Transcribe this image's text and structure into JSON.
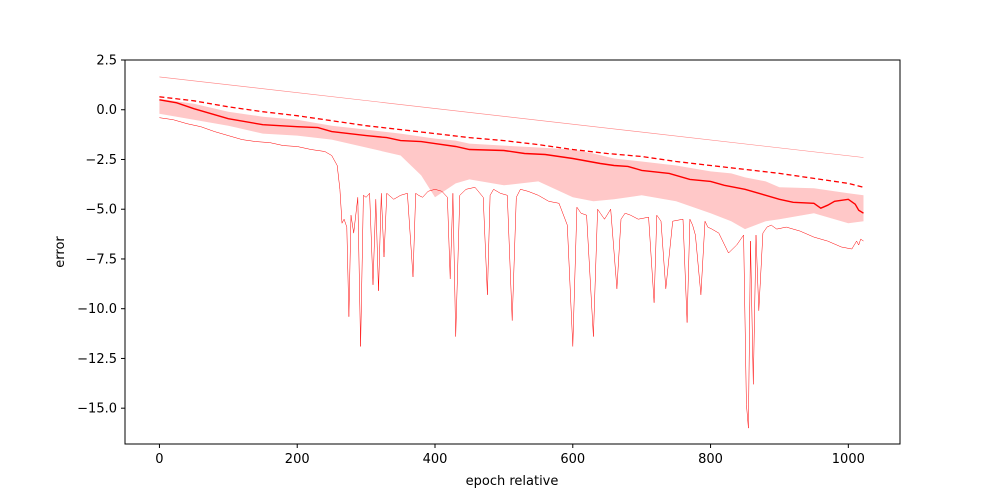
{
  "chart_data": {
    "type": "line",
    "title": "",
    "xlabel": "epoch relative",
    "ylabel": "error",
    "xlim": [
      -50,
      1075
    ],
    "ylim": [
      -16.8,
      2.5
    ],
    "xticks": [
      0,
      200,
      400,
      600,
      800,
      1000
    ],
    "xtick_labels": [
      "0",
      "200",
      "400",
      "600",
      "800",
      "1000"
    ],
    "yticks": [
      2.5,
      0.0,
      -2.5,
      -5.0,
      -7.5,
      -10.0,
      -12.5,
      -15.0
    ],
    "ytick_labels": [
      "2.5",
      "0.0",
      "−2.5",
      "−5.0",
      "−7.5",
      "−10.0",
      "−12.5",
      "−15.0"
    ],
    "grid": false,
    "legend": "none",
    "colors": {
      "line": "#ff0000",
      "band": "#ffc8c8",
      "thin": "#ff8080"
    },
    "series": [
      {
        "role": "upper-thin",
        "style": "thin-solid",
        "x": [
          0,
          1022
        ],
        "y": [
          1.65,
          -2.4
        ]
      },
      {
        "role": "upper-dashed",
        "style": "dashed",
        "x": [
          0,
          50,
          100,
          150,
          200,
          250,
          300,
          350,
          400,
          450,
          500,
          550,
          600,
          650,
          700,
          750,
          800,
          850,
          900,
          950,
          1000,
          1022
        ],
        "y": [
          0.65,
          0.45,
          0.15,
          -0.1,
          -0.3,
          -0.55,
          -0.8,
          -1.0,
          -1.2,
          -1.4,
          -1.55,
          -1.75,
          -2.0,
          -2.2,
          -2.35,
          -2.6,
          -2.8,
          -3.0,
          -3.2,
          -3.45,
          -3.7,
          -3.9
        ]
      },
      {
        "role": "mean",
        "style": "solid",
        "x": [
          0,
          25,
          50,
          75,
          100,
          150,
          200,
          230,
          250,
          300,
          330,
          350,
          380,
          400,
          430,
          450,
          500,
          530,
          560,
          600,
          640,
          660,
          680,
          700,
          740,
          770,
          800,
          820,
          850,
          880,
          900,
          920,
          950,
          960,
          970,
          980,
          1000,
          1010,
          1015,
          1022
        ],
        "y": [
          0.5,
          0.35,
          0.05,
          -0.2,
          -0.45,
          -0.75,
          -0.85,
          -0.9,
          -1.1,
          -1.3,
          -1.4,
          -1.55,
          -1.6,
          -1.7,
          -1.85,
          -2.0,
          -2.05,
          -2.2,
          -2.25,
          -2.45,
          -2.7,
          -2.8,
          -2.85,
          -3.05,
          -3.2,
          -3.5,
          -3.6,
          -3.8,
          -4.0,
          -4.3,
          -4.5,
          -4.65,
          -4.7,
          -4.95,
          -4.8,
          -4.6,
          -4.5,
          -4.75,
          -5.05,
          -5.2
        ]
      },
      {
        "role": "band",
        "style": "fill",
        "x": [
          0,
          50,
          100,
          150,
          200,
          250,
          300,
          350,
          380,
          400,
          430,
          450,
          500,
          550,
          600,
          630,
          660,
          700,
          750,
          800,
          830,
          850,
          880,
          900,
          950,
          1000,
          1022
        ],
        "upper": [
          0.55,
          0.3,
          -0.1,
          -0.35,
          -0.5,
          -0.8,
          -1.0,
          -1.2,
          -1.35,
          -1.45,
          -1.55,
          -1.7,
          -1.8,
          -1.9,
          -2.0,
          -2.2,
          -2.45,
          -2.6,
          -2.8,
          -3.1,
          -3.2,
          -3.4,
          -3.6,
          -3.9,
          -3.95,
          -4.2,
          -4.3
        ],
        "lower": [
          -0.2,
          -0.5,
          -0.8,
          -1.2,
          -1.3,
          -1.5,
          -1.9,
          -2.3,
          -3.3,
          -4.4,
          -3.7,
          -3.5,
          -3.8,
          -3.6,
          -4.4,
          -4.6,
          -4.5,
          -4.3,
          -4.6,
          -5.2,
          -5.6,
          -6.0,
          -5.6,
          -5.5,
          -5.2,
          -5.7,
          -5.6
        ]
      },
      {
        "role": "lower-thin",
        "style": "thin-solid",
        "x": [
          0,
          20,
          40,
          60,
          80,
          100,
          120,
          140,
          160,
          180,
          200,
          220,
          240,
          250,
          258,
          262,
          265,
          268,
          272,
          275,
          278,
          282,
          288,
          292,
          296,
          300,
          305,
          310,
          314,
          318,
          322,
          326,
          330,
          340,
          350,
          360,
          368,
          372,
          376,
          382,
          390,
          400,
          410,
          418,
          422,
          426,
          430,
          436,
          445,
          458,
          470,
          476,
          480,
          485,
          495,
          505,
          512,
          518,
          524,
          535,
          550,
          565,
          580,
          592,
          600,
          606,
          612,
          620,
          630,
          636,
          640,
          646,
          655,
          664,
          670,
          676,
          684,
          695,
          710,
          718,
          722,
          728,
          735,
          745,
          760,
          766,
          770,
          774,
          778,
          786,
          792,
          796,
          802,
          812,
          826,
          838,
          848,
          852,
          855,
          858,
          862,
          866,
          870,
          876,
          882,
          888,
          896,
          910,
          930,
          950,
          970,
          990,
          1005,
          1012,
          1015,
          1018,
          1022
        ],
        "y": [
          -0.4,
          -0.5,
          -0.7,
          -0.85,
          -1.1,
          -1.3,
          -1.5,
          -1.6,
          -1.65,
          -1.8,
          -1.85,
          -2.0,
          -2.1,
          -2.3,
          -2.8,
          -4.0,
          -5.7,
          -5.5,
          -5.9,
          -10.4,
          -5.3,
          -6.2,
          -4.4,
          -11.9,
          -4.3,
          -4.4,
          -4.2,
          -8.8,
          -4.5,
          -9.1,
          -4.2,
          -7.4,
          -4.2,
          -4.5,
          -4.3,
          -4.2,
          -8.4,
          -4.2,
          -4.3,
          -4.4,
          -4.1,
          -4.0,
          -4.1,
          -4.4,
          -8.5,
          -4.2,
          -11.4,
          -4.3,
          -4.0,
          -3.9,
          -4.4,
          -9.3,
          -4.3,
          -4.0,
          -4.2,
          -4.3,
          -10.6,
          -4.4,
          -4.0,
          -4.1,
          -4.3,
          -4.6,
          -4.7,
          -5.8,
          -11.9,
          -4.9,
          -5.2,
          -5.3,
          -11.4,
          -5.0,
          -5.2,
          -5.5,
          -5.0,
          -9.0,
          -5.5,
          -5.2,
          -5.3,
          -5.5,
          -5.4,
          -9.7,
          -5.3,
          -5.6,
          -9.0,
          -5.6,
          -5.5,
          -10.7,
          -5.5,
          -5.8,
          -6.3,
          -9.3,
          -5.6,
          -5.9,
          -6.0,
          -6.2,
          -7.2,
          -6.8,
          -6.3,
          -14.8,
          -16.0,
          -6.6,
          -13.8,
          -6.3,
          -10.1,
          -6.2,
          -5.9,
          -5.8,
          -6.0,
          -5.9,
          -6.1,
          -6.4,
          -6.6,
          -6.9,
          -7.0,
          -6.6,
          -6.8,
          -6.5,
          -6.6
        ]
      }
    ]
  }
}
